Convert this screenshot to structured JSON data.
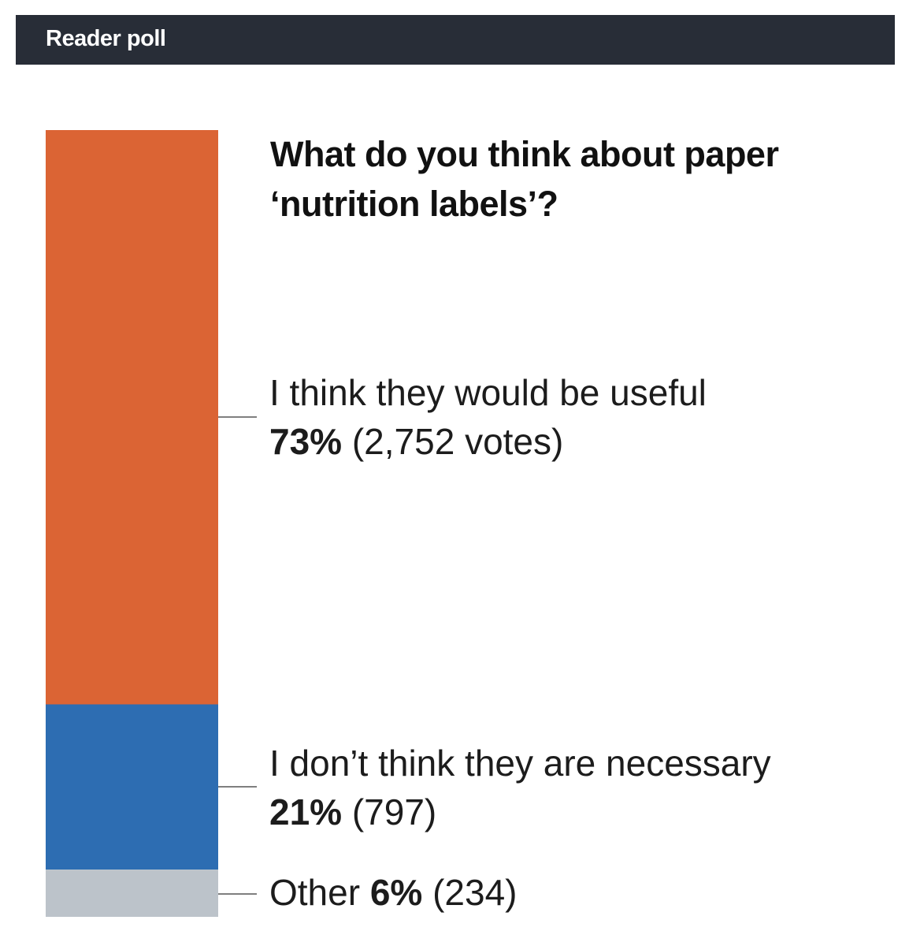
{
  "header": {
    "title": "Reader poll"
  },
  "chart_data": {
    "type": "bar",
    "orientation": "stacked-vertical",
    "title": "What do you think about paper ‘nutrition labels’?",
    "categories": [
      "I think they would be useful",
      "I don’t think they are necessary",
      "Other"
    ],
    "values": [
      73,
      21,
      6
    ],
    "value_labels": [
      "73%",
      "21%",
      "6%"
    ],
    "votes": [
      "(2,752 votes)",
      "(797)",
      "(234)"
    ],
    "colors": [
      "#db6434",
      "#2d6db2",
      "#bcc3ca"
    ],
    "xlabel": "",
    "ylabel": "",
    "grid": false
  }
}
